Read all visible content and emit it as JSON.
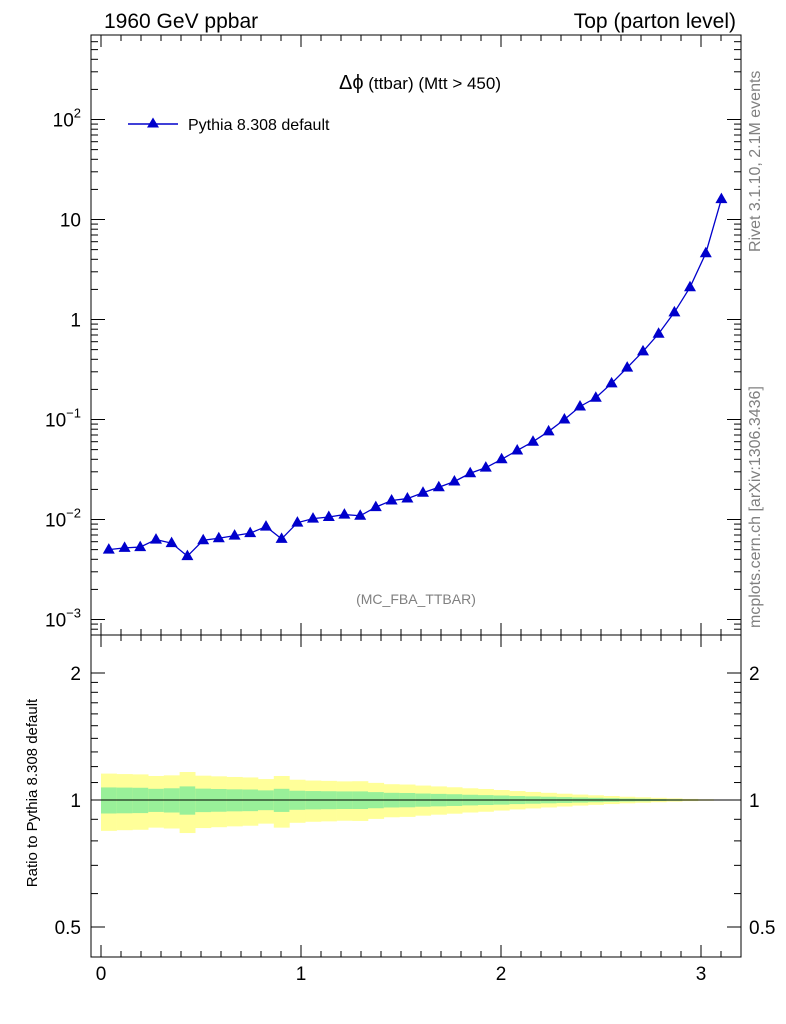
{
  "header": {
    "left": "1960 GeV ppbar",
    "right": "Top (parton level)"
  },
  "side_text": {
    "rivet": "Rivet 3.1.10,  2.1M events",
    "mcplots": "mcplots.cern.ch [arXiv:1306.3436]"
  },
  "colors": {
    "series": "#0000cc",
    "band_inner": "#99f099",
    "band_outer": "#ffff99"
  },
  "chart_data": [
    {
      "type": "line",
      "title": "Δϕ (ttbar) (Mtt > 450)",
      "title_prefix": "Δϕ",
      "title_rest": " (ttbar) (Mtt > 450)",
      "annotation": "(MC_FBA_TTBAR)",
      "yscale": "log",
      "xlim": [
        -0.05,
        3.2
      ],
      "ylim": [
        0.0007,
        700
      ],
      "grid": false,
      "legend": "top-left",
      "yticks": [
        {
          "base": "10",
          "exp": "−3",
          "value": 0.001
        },
        {
          "base": "10",
          "exp": "−2",
          "value": 0.01
        },
        {
          "base": "10",
          "exp": "−1",
          "value": 0.1
        },
        {
          "base": "1",
          "exp": "",
          "value": 1
        },
        {
          "base": "10",
          "exp": "",
          "value": 10
        },
        {
          "base": "10",
          "exp": "2",
          "value": 100
        }
      ],
      "series": [
        {
          "name": "Pythia 8.308 default",
          "marker": "triangle",
          "x": [
            0.039,
            0.118,
            0.196,
            0.275,
            0.353,
            0.432,
            0.511,
            0.589,
            0.668,
            0.746,
            0.825,
            0.903,
            0.982,
            1.06,
            1.139,
            1.217,
            1.296,
            1.374,
            1.453,
            1.532,
            1.61,
            1.689,
            1.767,
            1.846,
            1.924,
            2.003,
            2.081,
            2.16,
            2.238,
            2.317,
            2.395,
            2.474,
            2.553,
            2.631,
            2.71,
            2.788,
            2.867,
            2.945,
            3.024,
            3.102
          ],
          "y": [
            0.005,
            0.0052,
            0.0053,
            0.0063,
            0.0058,
            0.0043,
            0.0062,
            0.0065,
            0.0069,
            0.0073,
            0.0085,
            0.0064,
            0.0093,
            0.0102,
            0.0106,
            0.0112,
            0.0109,
            0.0133,
            0.0155,
            0.0162,
            0.0185,
            0.021,
            0.024,
            0.029,
            0.033,
            0.04,
            0.049,
            0.06,
            0.076,
            0.1,
            0.135,
            0.165,
            0.23,
            0.33,
            0.48,
            0.72,
            1.18,
            2.1,
            4.6,
            16.0
          ]
        }
      ]
    },
    {
      "type": "area",
      "ylabel": "Ratio to Pythia 8.308 default",
      "xlim": [
        -0.05,
        3.2
      ],
      "ylim": [
        0.5,
        2.0
      ],
      "yscale": "log",
      "xticks": [
        "0",
        "1",
        "2",
        "3"
      ],
      "yticks": [
        {
          "label": "0.5",
          "value": 0.5
        },
        {
          "label": "1",
          "value": 1
        },
        {
          "label": "2",
          "value": 2
        }
      ],
      "reference": 1.0,
      "band_edges": [
        0.0,
        0.078,
        0.157,
        0.236,
        0.314,
        0.393,
        0.471,
        0.55,
        0.628,
        0.707,
        0.785,
        0.864,
        0.942,
        1.021,
        1.1,
        1.178,
        1.257,
        1.335,
        1.414,
        1.492,
        1.571,
        1.649,
        1.728,
        1.806,
        1.885,
        1.963,
        2.042,
        2.121,
        2.199,
        2.278,
        2.356,
        2.435,
        2.513,
        2.592,
        2.67,
        2.749,
        2.827,
        2.906,
        2.985,
        3.063,
        3.142
      ],
      "band_inner": [
        0.071,
        0.07,
        0.069,
        0.063,
        0.066,
        0.077,
        0.064,
        0.062,
        0.06,
        0.059,
        0.054,
        0.063,
        0.052,
        0.05,
        0.049,
        0.048,
        0.048,
        0.044,
        0.04,
        0.039,
        0.036,
        0.034,
        0.032,
        0.029,
        0.027,
        0.025,
        0.022,
        0.02,
        0.018,
        0.016,
        0.014,
        0.012,
        0.01,
        0.008,
        0.007,
        0.005,
        0.004,
        0.003,
        0.002,
        0.001
      ],
      "band_outer": [
        0.155,
        0.152,
        0.15,
        0.14,
        0.144,
        0.165,
        0.142,
        0.138,
        0.134,
        0.131,
        0.121,
        0.14,
        0.117,
        0.112,
        0.11,
        0.107,
        0.108,
        0.098,
        0.09,
        0.088,
        0.082,
        0.077,
        0.072,
        0.066,
        0.062,
        0.056,
        0.05,
        0.045,
        0.04,
        0.035,
        0.03,
        0.026,
        0.022,
        0.018,
        0.015,
        0.012,
        0.009,
        0.006,
        0.004,
        0.002
      ]
    }
  ]
}
